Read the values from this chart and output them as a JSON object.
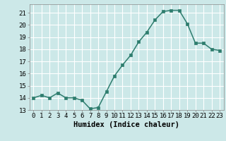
{
  "x": [
    0,
    1,
    2,
    3,
    4,
    5,
    6,
    7,
    8,
    9,
    10,
    11,
    12,
    13,
    14,
    15,
    16,
    17,
    18,
    19,
    20,
    21,
    22,
    23
  ],
  "y": [
    14.0,
    14.2,
    14.0,
    14.4,
    14.0,
    14.0,
    13.8,
    13.1,
    13.2,
    14.5,
    15.8,
    16.7,
    17.5,
    18.6,
    19.4,
    20.4,
    21.1,
    21.2,
    21.2,
    20.1,
    18.5,
    18.5,
    18.0,
    17.9
  ],
  "line_color": "#2e7d6e",
  "marker": "s",
  "marker_size": 2.2,
  "bg_color": "#cce8e8",
  "grid_color": "#ffffff",
  "xlabel": "Humidex (Indice chaleur)",
  "xlim": [
    -0.5,
    23.5
  ],
  "ylim": [
    13,
    21.7
  ],
  "yticks": [
    13,
    14,
    15,
    16,
    17,
    18,
    19,
    20,
    21
  ],
  "xticks": [
    0,
    1,
    2,
    3,
    4,
    5,
    6,
    7,
    8,
    9,
    10,
    11,
    12,
    13,
    14,
    15,
    16,
    17,
    18,
    19,
    20,
    21,
    22,
    23
  ],
  "tick_fontsize": 6.5,
  "xlabel_fontsize": 7.5,
  "line_width": 1.1
}
